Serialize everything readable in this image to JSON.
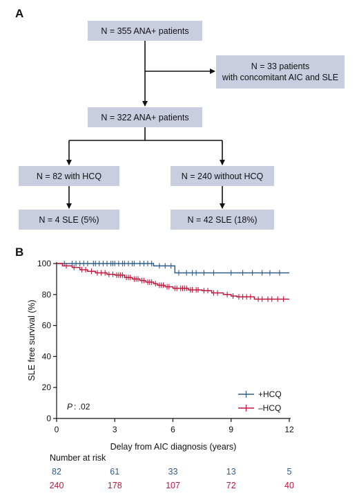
{
  "panelA": {
    "letter": "A",
    "boxes": {
      "top": "N = 355 ANA+ patients",
      "side_line1": "N = 33 patients",
      "side_line2": "with concomitant AIC and SLE",
      "mid": "N = 322 ANA+ patients",
      "left": "N = 82 with HCQ",
      "right": "N = 240 without HCQ",
      "left_out": "N = 4 SLE (5%)",
      "right_out": "N = 42 SLE (18%)"
    },
    "box_fill": "#c9cde0"
  },
  "panelB": {
    "letter": "B",
    "p_label": "P",
    "p_value": ": .02",
    "risk_title": "Number at risk",
    "risk_hcq": [
      "82",
      "61",
      "33",
      "13",
      "5"
    ],
    "risk_nohcq": [
      "240",
      "178",
      "107",
      "72",
      "40"
    ]
  },
  "chart_data": {
    "type": "line",
    "xlabel": "Delay from AIC diagnosis (years)",
    "ylabel": "SLE free survival (%)",
    "xlim": [
      0,
      12
    ],
    "ylim": [
      0,
      100
    ],
    "xticks": [
      0,
      3,
      6,
      9,
      12
    ],
    "yticks": [
      0,
      20,
      40,
      60,
      80,
      100
    ],
    "legend_position": "bottom-right",
    "series": [
      {
        "name": "+HCQ",
        "color": "#2e5c8a",
        "steps": [
          [
            0,
            100
          ],
          [
            0.3,
            100
          ],
          [
            5,
            98.5
          ],
          [
            6.1,
            94
          ],
          [
            12,
            94
          ]
        ],
        "censor_x": [
          0.4,
          0.8,
          1.0,
          1.2,
          1.4,
          1.6,
          1.9,
          2.0,
          2.2,
          2.4,
          2.6,
          2.8,
          2.9,
          3.0,
          3.2,
          3.4,
          3.5,
          3.7,
          3.9,
          4.0,
          4.3,
          4.5,
          4.7,
          4.9,
          5.3,
          5.6,
          5.9,
          6.3,
          6.7,
          7.0,
          7.2,
          7.6,
          8.1,
          9.0,
          9.6,
          10.1,
          10.6,
          11.0,
          11.5
        ]
      },
      {
        "name": "–HCQ",
        "color": "#c0163c",
        "steps": [
          [
            0,
            100
          ],
          [
            0.3,
            98.5
          ],
          [
            0.8,
            97.5
          ],
          [
            1.2,
            96
          ],
          [
            1.6,
            95
          ],
          [
            2.0,
            94
          ],
          [
            2.6,
            93
          ],
          [
            3.0,
            92.5
          ],
          [
            3.5,
            91
          ],
          [
            3.9,
            90
          ],
          [
            4.3,
            89
          ],
          [
            4.6,
            88
          ],
          [
            5.0,
            87
          ],
          [
            5.2,
            86
          ],
          [
            5.6,
            85
          ],
          [
            6.0,
            84
          ],
          [
            6.8,
            83
          ],
          [
            7.5,
            82.5
          ],
          [
            8.0,
            81
          ],
          [
            8.6,
            80
          ],
          [
            9.0,
            79
          ],
          [
            9.3,
            78.5
          ],
          [
            10.2,
            77
          ],
          [
            12,
            77
          ]
        ],
        "censor_x": [
          0.5,
          0.9,
          1.3,
          1.5,
          1.8,
          2.1,
          2.3,
          2.5,
          2.7,
          2.9,
          3.1,
          3.2,
          3.3,
          3.4,
          3.6,
          3.7,
          3.8,
          4.0,
          4.1,
          4.2,
          4.4,
          4.5,
          4.7,
          4.8,
          4.9,
          5.1,
          5.3,
          5.4,
          5.5,
          5.7,
          5.8,
          6.1,
          6.2,
          6.4,
          6.5,
          6.6,
          6.7,
          6.9,
          7.0,
          7.2,
          7.3,
          7.6,
          7.8,
          8.1,
          8.3,
          8.8,
          9.1,
          9.4,
          9.6,
          9.8,
          10.0,
          10.4,
          10.6,
          10.9,
          11.1,
          11.4,
          11.7
        ]
      }
    ]
  }
}
